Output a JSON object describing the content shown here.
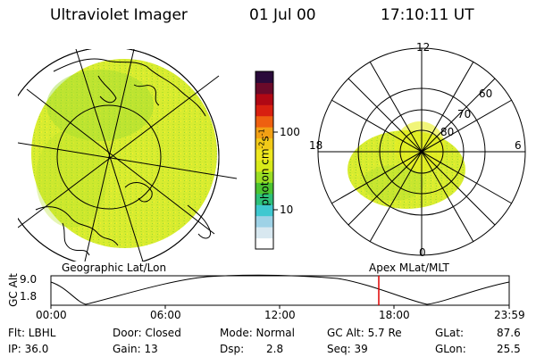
{
  "header": {
    "instrument": "Ultraviolet Imager",
    "date": "01 Jul 00",
    "time": "17:10:11 UT"
  },
  "colorbar": {
    "unit_label": "photon cm",
    "unit_sup1": "-2",
    "unit_mid": "s",
    "unit_sup2": "-1",
    "tick_100": "100",
    "tick_10": "10",
    "colors": [
      "#ffffff",
      "#d8e8f0",
      "#9ed2e6",
      "#3fc8d0",
      "#2ec07a",
      "#4cc432",
      "#9ade24",
      "#d8ea1a",
      "#eee820",
      "#f2ca18",
      "#f2a014",
      "#ee6010",
      "#d82010",
      "#b00814",
      "#6a0a2a",
      "#2a0a3a"
    ]
  },
  "geo_panel": {
    "label": "Geographic Lat/Lon",
    "fill_color": "#d6ea2c"
  },
  "polar_panel": {
    "label": "Apex MLat/MLT",
    "label_12": "12",
    "label_18": "18",
    "label_6": "6",
    "label_0": "0",
    "lat_60": "60",
    "lat_70": "70",
    "lat_80": "80"
  },
  "altitude_plot": {
    "axis_label": "GC Alt",
    "y_max": "9.0",
    "y_min": "1.8",
    "ticks": [
      "00:00",
      "06:00",
      "12:00",
      "18:00",
      "23:59"
    ],
    "marker_color": "#e00000"
  },
  "info": {
    "filter": "Flt: LBHL",
    "ip": "IP: 36.0",
    "door": "Door: Closed",
    "gain": "Gain: 13",
    "mode": "Mode: Normal",
    "dsp_label": "Dsp:",
    "dsp_value": "2.8",
    "gc_alt": "GC Alt: 5.7 Re",
    "seq": "Seq: 39",
    "glat_label": "GLat:",
    "glat_value": "87.6",
    "glon_label": "GLon:",
    "glon_value": "25.5"
  }
}
